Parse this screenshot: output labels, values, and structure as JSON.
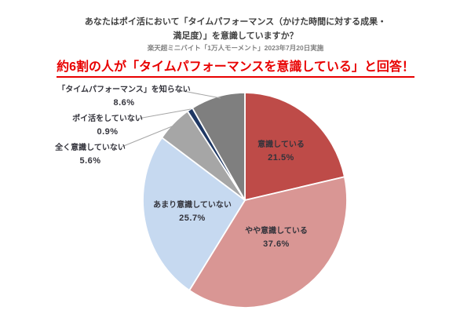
{
  "header": {
    "title_line1": "あなたはポイ活において「タイムパフォーマンス（かけた時間に対する成果・",
    "title_line2": "満足度）」を意識していますか？",
    "subtitle": "楽天超ミニバイト「1万人モーメント」2023年7月20日実施",
    "headline": "約6割の人が「タイムパフォーマンスを意識している」と回答！"
  },
  "colors": {
    "title_text": "#3f3f3f",
    "subtitle_text": "#808080",
    "headline_text": "#e80000",
    "label_text": "#33333b",
    "slice_border": "#ffffff",
    "leader_line": "#a6a6a6"
  },
  "chart_data": {
    "type": "pie",
    "title": "あなたはポイ活において「タイムパフォーマンス（かけた時間に対する成果・満足度）」を意識していますか？",
    "unit": "%",
    "start_angle_deg": 0,
    "direction": "clockwise",
    "legend": "none",
    "slices": [
      {
        "label": "意識している",
        "value": 21.5,
        "color": "#be4b48",
        "label_placement": "inside"
      },
      {
        "label": "やや意識している",
        "value": 37.6,
        "color": "#d99694",
        "label_placement": "inside"
      },
      {
        "label": "あまり意識していない",
        "value": 25.7,
        "color": "#c6d9f0",
        "label_placement": "inside"
      },
      {
        "label": "全く意識していない",
        "value": 5.6,
        "color": "#a6a6a6",
        "label_placement": "outside"
      },
      {
        "label": "ポイ活をしていない",
        "value": 0.9,
        "color": "#1f3864",
        "label_placement": "outside"
      },
      {
        "label": "「タイムパフォーマンス」を知らない",
        "value": 8.6,
        "color": "#7f7f7f",
        "label_placement": "outside"
      }
    ]
  }
}
